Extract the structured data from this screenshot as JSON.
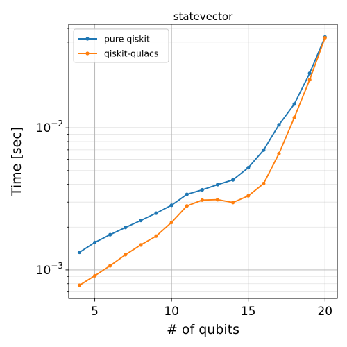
{
  "chart_data": {
    "type": "line",
    "title": "statevector",
    "xlabel": "# of qubits",
    "ylabel": "Time [sec]",
    "x": [
      4,
      5,
      6,
      7,
      8,
      9,
      10,
      11,
      12,
      13,
      14,
      15,
      16,
      17,
      18,
      19,
      20
    ],
    "xlim": [
      3.3,
      20.8
    ],
    "ylim": [
      0.00063,
      0.0535
    ],
    "yscale": "log",
    "x_ticks": [
      5,
      10,
      15,
      20
    ],
    "x_tick_labels": [
      "5",
      "10",
      "15",
      "20"
    ],
    "y_major_ticks": [
      0.001,
      0.01
    ],
    "y_tick_labels": [
      "10^-3",
      "10^-2"
    ],
    "grid": true,
    "legend_position": "upper-left",
    "series": [
      {
        "name": "pure qiskit",
        "color": "#1f77b4",
        "values": [
          0.00133,
          0.00156,
          0.00177,
          0.00199,
          0.00223,
          0.00251,
          0.00285,
          0.0034,
          0.00366,
          0.00398,
          0.0043,
          0.00524,
          0.00697,
          0.0105,
          0.0147,
          0.0242,
          0.0435
        ]
      },
      {
        "name": "qiskit-qulacs",
        "color": "#ff7f0e",
        "values": [
          0.00078,
          0.00091,
          0.00107,
          0.00128,
          0.0015,
          0.00173,
          0.00216,
          0.00282,
          0.0031,
          0.00312,
          0.00298,
          0.00332,
          0.00405,
          0.00658,
          0.0118,
          0.0218,
          0.043
        ]
      }
    ]
  }
}
